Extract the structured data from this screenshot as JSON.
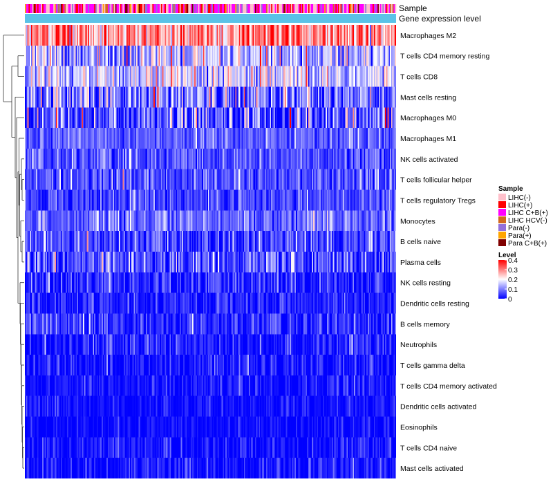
{
  "chart_data": {
    "type": "heatmap",
    "annotation_tracks": [
      {
        "name": "Sample",
        "type": "categorical"
      },
      {
        "name": "Gene expression level",
        "type": "continuous",
        "color": "#5bc2e7"
      }
    ],
    "rows": [
      {
        "label": "Macrophages M2",
        "mean": 0.28,
        "spread": 0.07
      },
      {
        "label": "T cells CD4 memory resting",
        "mean": 0.13,
        "spread": 0.07
      },
      {
        "label": "T cells CD8",
        "mean": 0.15,
        "spread": 0.07
      },
      {
        "label": "Mast cells resting",
        "mean": 0.1,
        "spread": 0.08
      },
      {
        "label": "Macrophages M0",
        "mean": 0.06,
        "spread": 0.09
      },
      {
        "label": "Macrophages M1",
        "mean": 0.07,
        "spread": 0.03
      },
      {
        "label": "NK cells activated",
        "mean": 0.06,
        "spread": 0.04
      },
      {
        "label": "T cells follicular helper",
        "mean": 0.06,
        "spread": 0.04
      },
      {
        "label": "T cells regulatory  Tregs",
        "mean": 0.05,
        "spread": 0.04
      },
      {
        "label": "Monocytes",
        "mean": 0.08,
        "spread": 0.04
      },
      {
        "label": "B cells naive",
        "mean": 0.05,
        "spread": 0.05
      },
      {
        "label": "Plasma cells",
        "mean": 0.06,
        "spread": 0.06
      },
      {
        "label": "NK cells resting",
        "mean": 0.03,
        "spread": 0.04
      },
      {
        "label": "Dendritic cells resting",
        "mean": 0.02,
        "spread": 0.03
      },
      {
        "label": "B cells memory",
        "mean": 0.03,
        "spread": 0.04
      },
      {
        "label": "Neutrophils",
        "mean": 0.02,
        "spread": 0.04
      },
      {
        "label": "T cells gamma delta",
        "mean": 0.01,
        "spread": 0.03
      },
      {
        "label": "T cells CD4 memory activated",
        "mean": 0.01,
        "spread": 0.03
      },
      {
        "label": "Dendritic cells activated",
        "mean": 0.01,
        "spread": 0.02
      },
      {
        "label": "Eosinophils",
        "mean": 0.005,
        "spread": 0.02
      },
      {
        "label": "T cells CD4 naive",
        "mean": 0.01,
        "spread": 0.03
      },
      {
        "label": "Mast cells activated",
        "mean": 0.01,
        "spread": 0.03
      }
    ],
    "n_samples": 300,
    "color_scale": {
      "min": 0,
      "max": 0.4,
      "stops": [
        {
          "value": 0,
          "color": "#0000ff"
        },
        {
          "value": 0.2,
          "color": "#ffffff"
        },
        {
          "value": 0.4,
          "color": "#ff0000"
        }
      ]
    },
    "legend": {
      "position": "right",
      "sample": {
        "title": "Sample",
        "items": [
          {
            "label": "LIHC(-)",
            "color": "#ffc0cb"
          },
          {
            "label": "LIHC(+)",
            "color": "#ff0000"
          },
          {
            "label": "LIHC C+B(+)",
            "color": "#ff00ff"
          },
          {
            "label": "LIHC HCV(-)",
            "color": "#d2691e"
          },
          {
            "label": "Para(-)",
            "color": "#9370db"
          },
          {
            "label": "Para(+)",
            "color": "#ffa500"
          },
          {
            "label": "Para C+B(+)",
            "color": "#800000"
          }
        ],
        "proportions": [
          0.28,
          0.12,
          0.4,
          0.04,
          0.08,
          0.04,
          0.04
        ]
      },
      "level": {
        "title": "Level",
        "ticks": [
          "0.4",
          "0.3",
          "0.2",
          "0.1",
          "0"
        ]
      }
    },
    "dendrogram": "row clustering, left side"
  }
}
